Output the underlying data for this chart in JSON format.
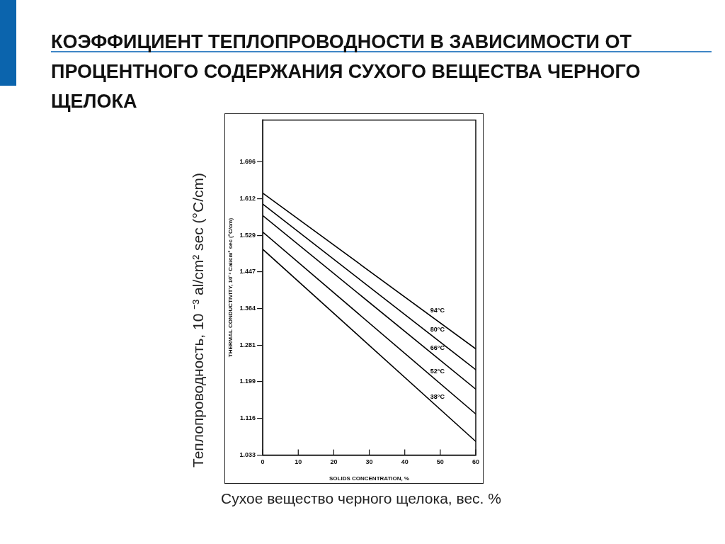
{
  "chart_data": {
    "type": "line",
    "title": "КОЭФФИЦИЕНТ ТЕПЛОПРОВОДНОСТИ В ЗАВИСИМОСТИ ОТ ПРОЦЕНТНОГО СОДЕРЖАНИЯ СУХОГО ВЕЩЕСТВА ЧЕРНОГО ЩЕЛОКА",
    "xlabel": "SOLIDS CONCENTRATION, %",
    "ylabel": "THERMAL CONDUCTIVITY, 10⁻³ Cal/cm² sec (°C/cm)",
    "annotations": [
      "Теплопроводность, 10 ⁻³ al/cm² sec (°C/cm)",
      "Сухое вещество черного щелока, вес. %"
    ],
    "x": [
      0,
      60
    ],
    "series": [
      {
        "name": "94°C",
        "color": "#000000",
        "values": [
          1.625,
          1.273
        ]
      },
      {
        "name": "80°C",
        "color": "#000000",
        "values": [
          1.6,
          1.226
        ]
      },
      {
        "name": "66°C",
        "color": "#000000",
        "values": [
          1.574,
          1.182
        ]
      },
      {
        "name": "52°C",
        "color": "#000000",
        "values": [
          1.537,
          1.126
        ]
      },
      {
        "name": "38°C",
        "color": "#000000",
        "values": [
          1.498,
          1.064
        ]
      }
    ],
    "xlim": [
      0,
      60
    ],
    "xticks": [
      0,
      10,
      20,
      30,
      40,
      50,
      60
    ],
    "ylim": [
      1.033,
      1.79
    ],
    "yticks": [
      1.033,
      1.116,
      1.199,
      1.281,
      1.364,
      1.447,
      1.529,
      1.612,
      1.696
    ],
    "marker": "none"
  }
}
